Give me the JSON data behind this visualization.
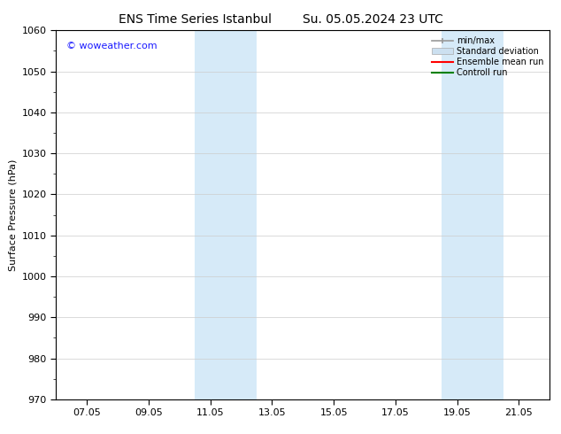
{
  "title_left": "ENS Time Series Istanbul",
  "title_right": "Su. 05.05.2024 23 UTC",
  "ylabel": "Surface Pressure (hPa)",
  "ylim": [
    970,
    1060
  ],
  "yticks": [
    970,
    980,
    990,
    1000,
    1010,
    1020,
    1030,
    1040,
    1050,
    1060
  ],
  "xtick_labels": [
    "07.05",
    "09.05",
    "11.05",
    "13.05",
    "15.05",
    "17.05",
    "19.05",
    "21.05"
  ],
  "xtick_positions": [
    2,
    4,
    6,
    8,
    10,
    12,
    14,
    16
  ],
  "xlim": [
    1,
    17
  ],
  "shaded_bands": [
    {
      "x_start": 5.5,
      "x_end": 7.5
    },
    {
      "x_start": 13.5,
      "x_end": 15.5
    }
  ],
  "shaded_color": "#d6eaf8",
  "background_color": "#ffffff",
  "plot_bg_color": "#ffffff",
  "watermark_text": "© woweather.com",
  "watermark_color": "#1a1aff",
  "watermark_fontsize": 8,
  "title_fontsize": 10,
  "axis_label_fontsize": 8,
  "tick_fontsize": 8,
  "legend_items": [
    {
      "label": "min/max",
      "color": "#999999",
      "lw": 1.2,
      "ls": "-"
    },
    {
      "label": "Standard deviation",
      "color": "#cce0f0",
      "lw": 6,
      "ls": "-"
    },
    {
      "label": "Ensemble mean run",
      "color": "#ff0000",
      "lw": 1.5,
      "ls": "-"
    },
    {
      "label": "Controll run",
      "color": "#008000",
      "lw": 1.5,
      "ls": "-"
    }
  ],
  "legend_fontsize": 7,
  "grid_color": "#cccccc",
  "grid_lw": 0.5,
  "border_color": "#000000",
  "tick_color": "#000000"
}
